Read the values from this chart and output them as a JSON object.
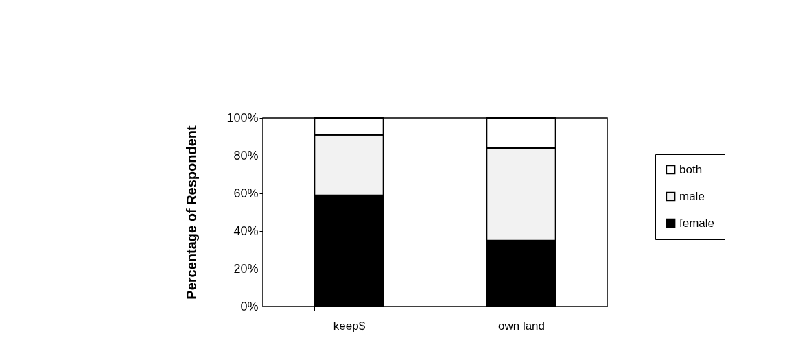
{
  "chart_data": {
    "type": "bar",
    "stacked": true,
    "ylabel": "Percentage of Respondent",
    "categories": [
      "keep$",
      "own land"
    ],
    "series": [
      {
        "name": "female",
        "color": "#000000",
        "values": [
          59,
          35
        ]
      },
      {
        "name": "male",
        "color": "#f2f2f2",
        "values": [
          32,
          49
        ]
      },
      {
        "name": "both",
        "color": "#ffffff",
        "values": [
          9,
          16
        ]
      }
    ],
    "ylim": [
      0,
      100
    ],
    "yticks": [
      {
        "value": 0,
        "label": "0%"
      },
      {
        "value": 20,
        "label": "20%"
      },
      {
        "value": 40,
        "label": "40%"
      },
      {
        "value": 60,
        "label": "60%"
      },
      {
        "value": 80,
        "label": "80%"
      },
      {
        "value": 100,
        "label": "100%"
      }
    ],
    "legend": "right",
    "grid": false
  }
}
